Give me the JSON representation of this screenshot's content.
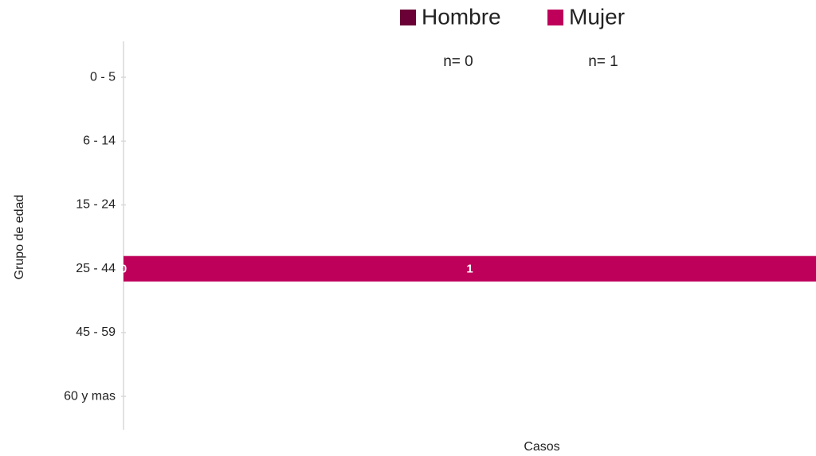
{
  "chart_data": {
    "type": "pyramid",
    "x_label": "Casos",
    "y_label": "Grupo de edad",
    "categories": [
      "0 - 5",
      "6 - 14",
      "15 - 24",
      "25 - 44",
      "45 - 59",
      "60 y mas"
    ],
    "series": [
      {
        "name": "Hombre",
        "color": "#6a0035",
        "values": [
          0,
          0,
          0,
          0,
          0,
          0
        ],
        "value_labels": [
          null,
          null,
          null,
          "0",
          null,
          null
        ]
      },
      {
        "name": "Mujer",
        "color": "#be005a",
        "values": [
          0,
          0,
          0,
          1,
          0,
          0
        ],
        "value_labels": [
          null,
          null,
          null,
          "1",
          null,
          null
        ]
      }
    ],
    "annotations": [
      "n= 0",
      "n= 1"
    ],
    "xlim": [
      0,
      1
    ]
  }
}
